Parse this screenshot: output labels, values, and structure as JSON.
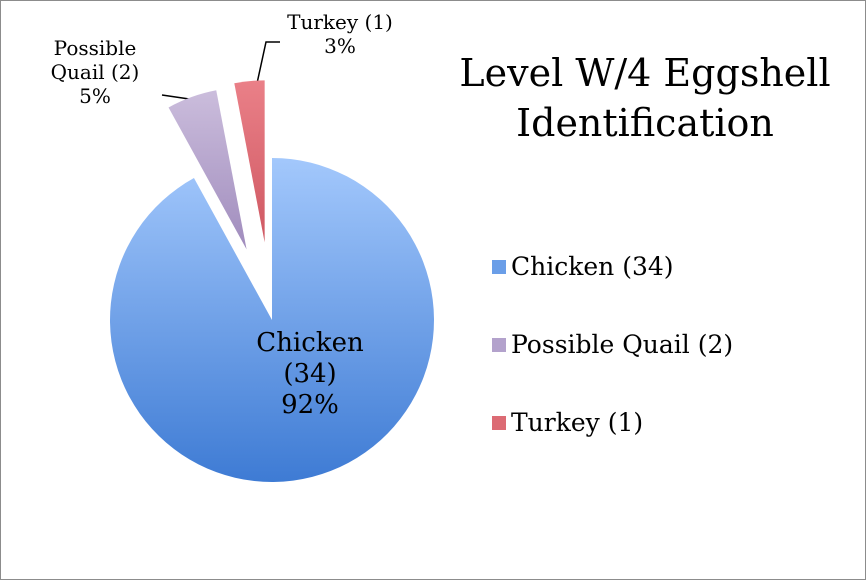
{
  "chart_data": {
    "type": "pie",
    "title": "Level W/4 Eggshell Identification",
    "categories": [
      "Chicken (34)",
      "Possible Quail (2)",
      "Turkey (1)"
    ],
    "values": [
      92,
      5,
      3
    ],
    "value_labels": [
      "92%",
      "5%",
      "3%"
    ],
    "colors": [
      "#6a9ee8",
      "#b3a2cc",
      "#dc6b74"
    ],
    "legend": "right"
  }
}
